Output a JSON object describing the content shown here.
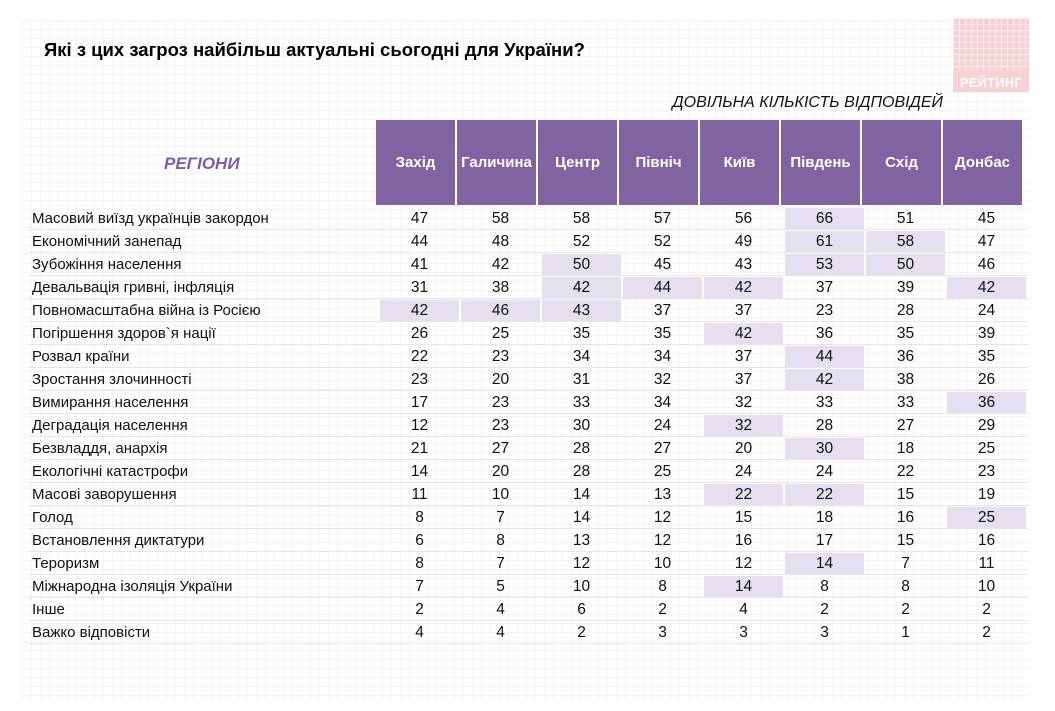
{
  "title": "Які з цих загроз найбільш актуальні сьогодні для України?",
  "logo_text": "РЕЙТИНГ",
  "subtitle": "ДОВІЛЬНА КІЛЬКІСТЬ ВІДПОВІДЕЙ",
  "regions_label": "РЕГІОНИ",
  "columns": [
    "Захід",
    "Галичина",
    "Центр",
    "Північ",
    "Київ",
    "Південь",
    "Схід",
    "Донбас"
  ],
  "highlight_color": "#e5dff0",
  "header_color": "#8064a2",
  "rows": [
    {
      "label": "Масовий виїзд українців закордон",
      "values": [
        "47",
        "58",
        "58",
        "57",
        "56",
        "66",
        "51",
        "45"
      ],
      "highlight": [
        5
      ]
    },
    {
      "label": "Економічний занепад",
      "values": [
        "44",
        "48",
        "52",
        "52",
        "49",
        "61",
        "58",
        "47"
      ],
      "highlight": [
        5,
        6
      ]
    },
    {
      "label": "Зубожіння населення",
      "values": [
        "41",
        "42",
        "50",
        "45",
        "43",
        "53",
        "50",
        "46"
      ],
      "highlight": [
        2,
        5,
        6
      ]
    },
    {
      "label": "Девальвація гривні, інфляція",
      "values": [
        "31",
        "38",
        "42",
        "44",
        "42",
        "37",
        "39",
        "42"
      ],
      "highlight": [
        2,
        3,
        4,
        7
      ]
    },
    {
      "label": "Повномасштабна війна із Росією",
      "values": [
        "42",
        "46",
        "43",
        "37",
        "37",
        "23",
        "28",
        "24"
      ],
      "highlight": [
        0,
        1,
        2
      ]
    },
    {
      "label": "Погіршення здоров`я нації",
      "values": [
        "26",
        "25",
        "35",
        "35",
        "42",
        "36",
        "35",
        "39"
      ],
      "highlight": [
        4
      ]
    },
    {
      "label": "Розвал країни",
      "values": [
        "22",
        "23",
        "34",
        "34",
        "37",
        "44",
        "36",
        "35"
      ],
      "highlight": [
        5
      ]
    },
    {
      "label": "Зростання злочинності",
      "values": [
        "23",
        "20",
        "31",
        "32",
        "37",
        "42",
        "38",
        "26"
      ],
      "highlight": [
        5
      ]
    },
    {
      "label": "Вимирання населення",
      "values": [
        "17",
        "23",
        "33",
        "34",
        "32",
        "33",
        "33",
        "36"
      ],
      "highlight": [
        7
      ]
    },
    {
      "label": "Деградація населення",
      "values": [
        "12",
        "23",
        "30",
        "24",
        "32",
        "28",
        "27",
        "29"
      ],
      "highlight": [
        4
      ]
    },
    {
      "label": "Безвладдя, анархія",
      "values": [
        "21",
        "27",
        "28",
        "27",
        "20",
        "30",
        "18",
        "25"
      ],
      "highlight": [
        5
      ]
    },
    {
      "label": "Екологічні катастрофи",
      "values": [
        "14",
        "20",
        "28",
        "25",
        "24",
        "24",
        "22",
        "23"
      ],
      "highlight": []
    },
    {
      "label": "Масові заворушення",
      "values": [
        "11",
        "10",
        "14",
        "13",
        "22",
        "22",
        "15",
        "19"
      ],
      "highlight": [
        4,
        5
      ]
    },
    {
      "label": "Голод",
      "values": [
        "8",
        "7",
        "14",
        "12",
        "15",
        "18",
        "16",
        "25"
      ],
      "highlight": [
        7
      ]
    },
    {
      "label": "Встановлення диктатури",
      "values": [
        "6",
        "8",
        "13",
        "12",
        "16",
        "17",
        "15",
        "16"
      ],
      "highlight": []
    },
    {
      "label": "Тероризм",
      "values": [
        "8",
        "7",
        "12",
        "10",
        "12",
        "14",
        "7",
        "11"
      ],
      "highlight": [
        5
      ]
    },
    {
      "label": "Міжнародна ізоляція України",
      "values": [
        "7",
        "5",
        "10",
        "8",
        "14",
        "8",
        "8",
        "10"
      ],
      "highlight": [
        4
      ]
    },
    {
      "label": "Інше",
      "values": [
        "2",
        "4",
        "6",
        "2",
        "4",
        "2",
        "2",
        "2"
      ],
      "highlight": []
    },
    {
      "label": "Важко відповісти",
      "values": [
        "4",
        "4",
        "2",
        "3",
        "3",
        "3",
        "1",
        "2"
      ],
      "highlight": []
    }
  ]
}
